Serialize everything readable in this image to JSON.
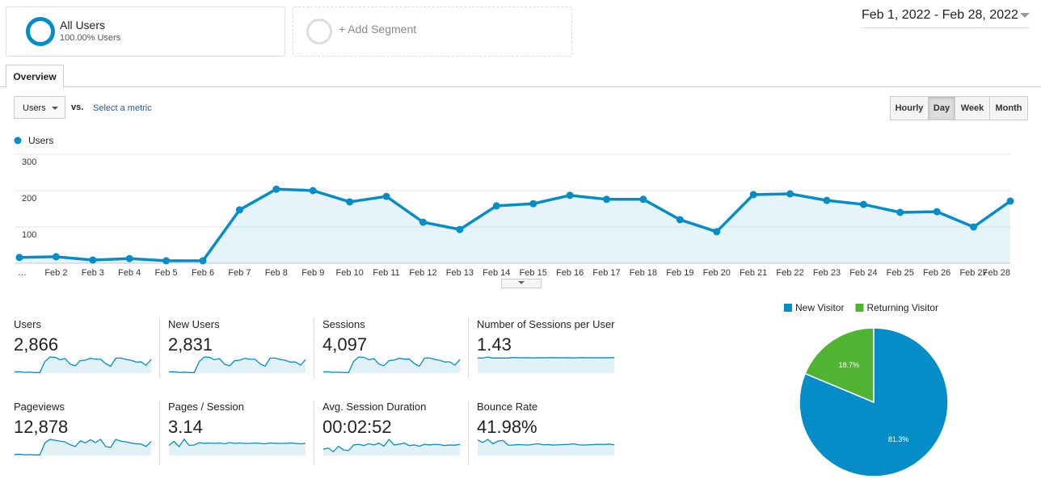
{
  "segments": [
    {
      "name": "All Users",
      "detail": "100.00% Users"
    },
    {
      "name": "+ Add Segment"
    }
  ],
  "date_range": "Feb 1, 2022 - Feb 28, 2022",
  "tabs": [
    "Overview"
  ],
  "metric_select": "Users",
  "vs": "vs.",
  "select_metric": "Select a metric",
  "granularity": [
    "Hourly",
    "Day",
    "Week",
    "Month"
  ],
  "active_granularity": 1,
  "chart_data": [
    {
      "type": "line",
      "categories": [
        "…",
        "Feb 2",
        "Feb 3",
        "Feb 4",
        "Feb 5",
        "Feb 6",
        "Feb 7",
        "Feb 8",
        "Feb 9",
        "Feb 10",
        "Feb 11",
        "Feb 12",
        "Feb 13",
        "Feb 14",
        "Feb 15",
        "Feb 16",
        "Feb 17",
        "Feb 18",
        "Feb 19",
        "Feb 20",
        "Feb 21",
        "Feb 22",
        "Feb 23",
        "Feb 24",
        "Feb 25",
        "Feb 26",
        "Feb 27",
        "Feb 28"
      ],
      "series": [
        {
          "name": "Users",
          "color": "#058dc7",
          "values": [
            16,
            18,
            9,
            13,
            7,
            7,
            147,
            204,
            200,
            169,
            184,
            113,
            93,
            158,
            164,
            187,
            176,
            176,
            120,
            87,
            189,
            191,
            173,
            162,
            140,
            142,
            100,
            171
          ]
        }
      ],
      "ylim": [
        0,
        300
      ],
      "yticks": [
        100,
        200,
        300
      ],
      "grid": true,
      "legend": "top-left"
    },
    {
      "type": "pie",
      "legend": "top",
      "categories": [
        "New Visitor",
        "Returning Visitor"
      ],
      "values": [
        81.3,
        18.7
      ],
      "value_labels": [
        "81.3%",
        "18.7%"
      ],
      "colors": [
        "#058dc7",
        "#50b432"
      ]
    }
  ],
  "metrics": [
    {
      "label": "Users",
      "value": "2,866",
      "sparkline": [
        16,
        18,
        9,
        13,
        7,
        7,
        147,
        204,
        200,
        169,
        184,
        113,
        93,
        158,
        164,
        187,
        176,
        176,
        120,
        87,
        189,
        191,
        173,
        162,
        140,
        142,
        100,
        171
      ]
    },
    {
      "label": "New Users",
      "value": "2,831",
      "sparkline": [
        15,
        17,
        9,
        12,
        7,
        7,
        145,
        202,
        198,
        167,
        182,
        111,
        92,
        156,
        162,
        185,
        174,
        174,
        118,
        86,
        187,
        189,
        171,
        160,
        138,
        140,
        99,
        169
      ]
    },
    {
      "label": "Sessions",
      "value": "4,097",
      "sparkline": [
        22,
        25,
        13,
        18,
        10,
        10,
        210,
        290,
        285,
        240,
        262,
        160,
        133,
        225,
        234,
        267,
        251,
        251,
        171,
        124,
        270,
        273,
        247,
        231,
        200,
        203,
        143,
        244
      ]
    },
    {
      "label": "Number of Sessions per User",
      "value": "1.43",
      "sparkline": [
        1.4,
        1.4,
        1.5,
        1.4,
        1.4,
        1.4,
        1.4,
        1.45,
        1.42,
        1.43,
        1.43,
        1.41,
        1.43,
        1.42,
        1.43,
        1.44,
        1.43,
        1.42,
        1.43,
        1.41,
        1.43,
        1.44,
        1.42,
        1.43,
        1.43,
        1.42,
        1.43,
        1.44
      ]
    },
    {
      "label": "Pageviews",
      "value": "12,878",
      "sparkline": [
        60,
        70,
        40,
        50,
        30,
        30,
        700,
        900,
        850,
        800,
        760,
        600,
        500,
        820,
        700,
        880,
        720,
        900,
        500,
        450,
        900,
        800,
        760,
        700,
        650,
        640,
        500,
        780
      ]
    },
    {
      "label": "Pages / Session",
      "value": "3.14",
      "sparkline": [
        2.5,
        3.5,
        2.2,
        4.0,
        2.5,
        2.6,
        3.2,
        3.0,
        3.1,
        3.0,
        3.1,
        2.9,
        3.2,
        3.0,
        3.1,
        3.0,
        3.0,
        3.1,
        3.0,
        2.9,
        3.1,
        3.0,
        3.0,
        3.0,
        3.1,
        3.0,
        2.9,
        3.0
      ]
    },
    {
      "label": "Avg. Session Duration",
      "value": "00:02:52",
      "sparkline": [
        100,
        120,
        60,
        150,
        90,
        80,
        170,
        180,
        160,
        190,
        170,
        200,
        150,
        260,
        170,
        180,
        200,
        160,
        170,
        150,
        180,
        170,
        180,
        175,
        160,
        170,
        165,
        180
      ]
    },
    {
      "label": "Bounce Rate",
      "value": "41.98%",
      "sparkline": [
        60,
        50,
        62,
        45,
        55,
        58,
        40,
        40,
        42,
        41,
        40,
        43,
        45,
        41,
        42,
        40,
        41,
        42,
        43,
        45,
        41,
        40,
        41,
        42,
        43,
        42,
        44,
        41
      ]
    }
  ]
}
